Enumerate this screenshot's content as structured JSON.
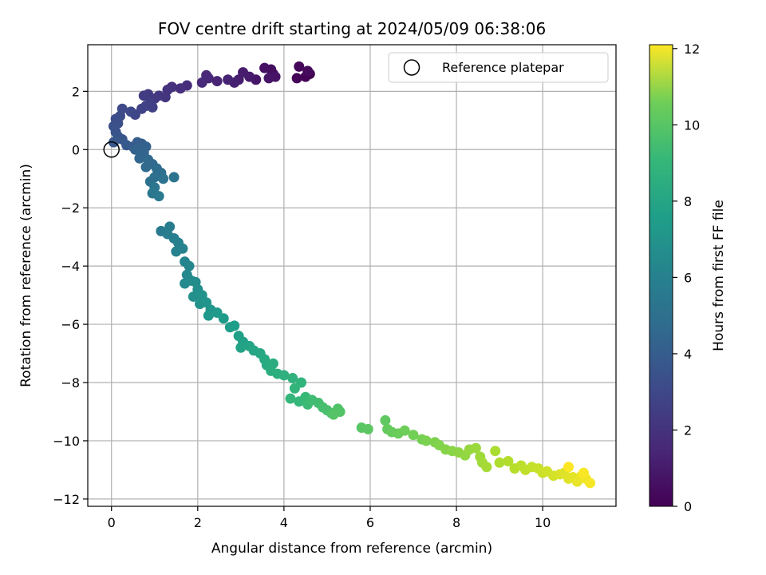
{
  "chart_data": {
    "type": "scatter",
    "title": "FOV centre drift starting at 2024/05/09 06:38:06",
    "xlabel": "Angular distance from reference (arcmin)",
    "ylabel": "Rotation from reference (arcmin)",
    "xlim": [
      -0.55,
      11.7
    ],
    "ylim": [
      -12.25,
      3.6
    ],
    "xticks": [
      0,
      2,
      4,
      6,
      8,
      10
    ],
    "yticks": [
      -12,
      -10,
      -8,
      -6,
      -4,
      -2,
      0,
      2
    ],
    "xtick_labels": [
      "0",
      "2",
      "4",
      "6",
      "8",
      "10"
    ],
    "ytick_labels": [
      "−12",
      "−10",
      "−8",
      "−6",
      "−4",
      "−2",
      "0",
      "2"
    ],
    "grid": true,
    "legend": {
      "placement": "top-right",
      "entries": [
        "Reference platepar"
      ]
    },
    "reference_point": {
      "x": 0,
      "y": 0,
      "label": "Reference platepar"
    },
    "colorbar": {
      "label": "Hours from first FF file",
      "colormap": "viridis",
      "range": [
        0,
        12.1
      ],
      "ticks": [
        0,
        2,
        4,
        6,
        8,
        10,
        12
      ],
      "tick_labels": [
        "0",
        "2",
        "4",
        "6",
        "8",
        "10",
        "12"
      ]
    },
    "series": [
      {
        "columns": [
          "x",
          "y",
          "hours"
        ],
        "points": [
          [
            4.6,
            2.6
          ],
          [
            4.5,
            2.5
          ],
          [
            4.3,
            2.45
          ],
          [
            4.35,
            2.85
          ],
          [
            4.55,
            2.7
          ],
          [
            3.75,
            2.6
          ],
          [
            3.7,
            2.75
          ],
          [
            3.55,
            2.8
          ],
          [
            3.8,
            2.5
          ],
          [
            3.65,
            2.45
          ],
          [
            3.35,
            2.4
          ],
          [
            3.2,
            2.5
          ],
          [
            3.05,
            2.65
          ],
          [
            2.95,
            2.4
          ],
          [
            2.85,
            2.3
          ],
          [
            2.7,
            2.4
          ],
          [
            2.45,
            2.35
          ],
          [
            2.25,
            2.45
          ],
          [
            2.2,
            2.55
          ],
          [
            2.1,
            2.3
          ],
          [
            1.75,
            2.2
          ],
          [
            1.6,
            2.1
          ],
          [
            1.4,
            2.15
          ],
          [
            1.3,
            2.05
          ],
          [
            1.25,
            1.8
          ],
          [
            1.1,
            1.85
          ],
          [
            1.0,
            1.75
          ],
          [
            0.85,
            1.9
          ],
          [
            0.75,
            1.85
          ],
          [
            0.9,
            1.6
          ],
          [
            0.95,
            1.45
          ],
          [
            0.8,
            1.5
          ],
          [
            0.7,
            1.4
          ],
          [
            0.55,
            1.2
          ],
          [
            0.45,
            1.3
          ],
          [
            0.25,
            1.4
          ],
          [
            0.2,
            1.15
          ],
          [
            0.1,
            1.05
          ],
          [
            0.15,
            0.9
          ],
          [
            0.05,
            0.8
          ],
          [
            0.1,
            0.6
          ],
          [
            0.15,
            0.45
          ],
          [
            0.25,
            0.35
          ],
          [
            0.05,
            0.25
          ],
          [
            0.35,
            0.15
          ],
          [
            0.5,
            0.1
          ],
          [
            0.6,
            0.25
          ],
          [
            0.7,
            0.2
          ],
          [
            0.8,
            0.1
          ],
          [
            0.55,
            0.0
          ],
          [
            0.75,
            -0.1
          ],
          [
            0.65,
            -0.3
          ],
          [
            0.85,
            -0.35
          ],
          [
            0.95,
            -0.5
          ],
          [
            0.8,
            -0.6
          ],
          [
            1.05,
            -0.65
          ],
          [
            1.15,
            -0.8
          ],
          [
            1.0,
            -0.95
          ],
          [
            0.9,
            -1.1
          ],
          [
            1.2,
            -1.0
          ],
          [
            1.45,
            -0.95
          ],
          [
            1.0,
            -1.3
          ],
          [
            0.95,
            -1.5
          ],
          [
            1.1,
            -1.6
          ],
          [
            1.15,
            -2.8
          ],
          [
            1.35,
            -2.65
          ],
          [
            1.3,
            -2.9
          ],
          [
            1.45,
            -3.05
          ],
          [
            1.55,
            -3.2
          ],
          [
            1.5,
            -3.5
          ],
          [
            1.65,
            -3.4
          ],
          [
            1.7,
            -3.85
          ],
          [
            1.8,
            -4.0
          ],
          [
            1.75,
            -4.3
          ],
          [
            1.7,
            -4.6
          ],
          [
            1.85,
            -4.5
          ],
          [
            1.95,
            -4.55
          ],
          [
            2.0,
            -4.8
          ],
          [
            1.9,
            -5.05
          ],
          [
            2.1,
            -5.0
          ],
          [
            2.05,
            -5.3
          ],
          [
            2.2,
            -5.25
          ],
          [
            2.3,
            -5.5
          ],
          [
            2.25,
            -5.7
          ],
          [
            2.45,
            -5.6
          ],
          [
            2.6,
            -5.8
          ],
          [
            2.75,
            -6.1
          ],
          [
            2.85,
            -6.05
          ],
          [
            2.95,
            -6.4
          ],
          [
            3.05,
            -6.6
          ],
          [
            3.0,
            -6.8
          ],
          [
            3.2,
            -6.75
          ],
          [
            3.3,
            -6.9
          ],
          [
            3.45,
            -7.0
          ],
          [
            3.55,
            -7.2
          ],
          [
            3.6,
            -7.4
          ],
          [
            3.75,
            -7.35
          ],
          [
            3.7,
            -7.6
          ],
          [
            3.85,
            -7.7
          ],
          [
            4.0,
            -7.75
          ],
          [
            4.2,
            -7.85
          ],
          [
            4.4,
            -8.0
          ],
          [
            4.25,
            -8.2
          ],
          [
            4.15,
            -8.55
          ],
          [
            4.35,
            -8.65
          ],
          [
            4.5,
            -8.5
          ],
          [
            4.55,
            -8.75
          ],
          [
            4.65,
            -8.6
          ],
          [
            4.8,
            -8.7
          ],
          [
            4.9,
            -8.85
          ],
          [
            5.0,
            -8.95
          ],
          [
            5.1,
            -9.05
          ],
          [
            5.25,
            -8.9
          ],
          [
            5.3,
            -9.0
          ],
          [
            5.15,
            -9.1
          ],
          [
            5.8,
            -9.55
          ],
          [
            5.95,
            -9.6
          ],
          [
            6.35,
            -9.3
          ],
          [
            6.4,
            -9.6
          ],
          [
            6.5,
            -9.7
          ],
          [
            6.65,
            -9.75
          ],
          [
            6.8,
            -9.65
          ],
          [
            7.0,
            -9.8
          ],
          [
            7.2,
            -9.95
          ],
          [
            7.3,
            -10.0
          ],
          [
            7.5,
            -10.05
          ],
          [
            7.6,
            -10.15
          ],
          [
            7.75,
            -10.3
          ],
          [
            7.9,
            -10.35
          ],
          [
            8.05,
            -10.4
          ],
          [
            8.2,
            -10.5
          ],
          [
            8.3,
            -10.3
          ],
          [
            8.45,
            -10.25
          ],
          [
            8.55,
            -10.55
          ],
          [
            8.6,
            -10.75
          ],
          [
            8.7,
            -10.9
          ],
          [
            8.9,
            -10.35
          ],
          [
            9.0,
            -10.75
          ],
          [
            9.2,
            -10.7
          ],
          [
            9.35,
            -10.95
          ],
          [
            9.5,
            -10.85
          ],
          [
            9.6,
            -11.0
          ],
          [
            9.75,
            -10.9
          ],
          [
            9.9,
            -10.95
          ],
          [
            10.0,
            -11.1
          ],
          [
            10.1,
            -11.05
          ],
          [
            10.25,
            -11.2
          ],
          [
            10.4,
            -11.15
          ],
          [
            10.5,
            -11.1
          ],
          [
            10.6,
            -11.3
          ],
          [
            10.7,
            -11.25
          ],
          [
            10.8,
            -11.4
          ],
          [
            10.9,
            -11.2
          ],
          [
            11.0,
            -11.3
          ],
          [
            11.1,
            -11.45
          ],
          [
            10.95,
            -11.1
          ],
          [
            10.6,
            -10.9
          ]
        ]
      }
    ]
  }
}
